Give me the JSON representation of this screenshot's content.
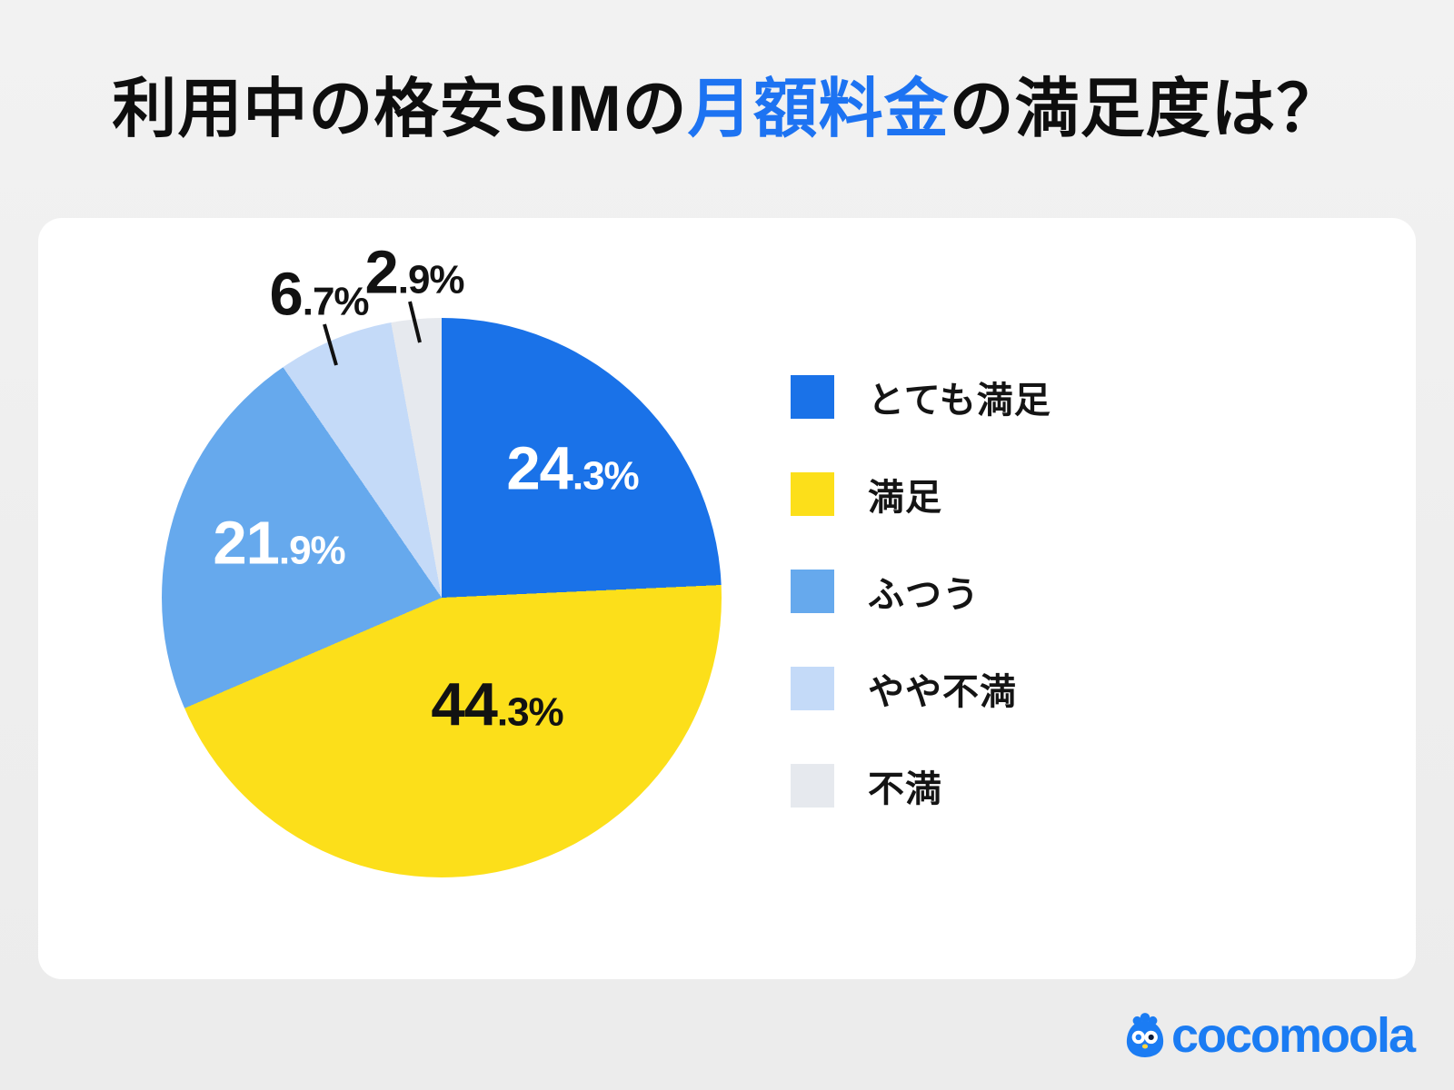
{
  "title": {
    "pre": "利用中の格安SIMの",
    "highlight": "月額料金",
    "post": "の満足度は？",
    "highlight_color": "#1d73f2"
  },
  "chart_data": {
    "type": "pie",
    "title": "利用中の格安SIMの月額料金の満足度は？",
    "direction": "clockwise",
    "start_angle_deg": 0,
    "unit": "%",
    "categories": [
      "とても満足",
      "満足",
      "ふつう",
      "やや不満",
      "不満"
    ],
    "values": [
      24.3,
      44.3,
      21.9,
      6.7,
      2.9
    ],
    "colors": [
      "#1a72e8",
      "#fcdf1a",
      "#66a9ed",
      "#c4daf8",
      "#e6e9ee"
    ],
    "legend_position": "right",
    "labels": [
      {
        "int": "24",
        "frac": ".3%",
        "placement": "inside"
      },
      {
        "int": "44",
        "frac": ".3%",
        "placement": "inside"
      },
      {
        "int": "21",
        "frac": ".9%",
        "placement": "inside"
      },
      {
        "int": "6",
        "frac": ".7%",
        "placement": "outside"
      },
      {
        "int": "2",
        "frac": ".9%",
        "placement": "outside"
      }
    ]
  },
  "footer": {
    "brand": "cocomoola",
    "brand_color": "#1b7cf3"
  }
}
